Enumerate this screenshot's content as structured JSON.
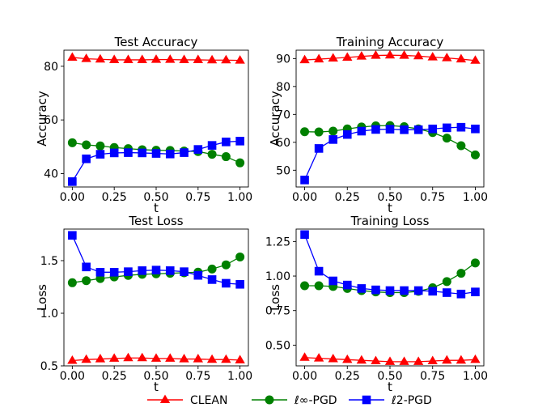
{
  "chart_data": [
    {
      "type": "line",
      "title": "Test Accuracy",
      "xlabel": "t",
      "ylabel": "Accuracy",
      "xlim": [
        -0.05,
        1.05
      ],
      "ylim": [
        35,
        86
      ],
      "xticks": [
        0.0,
        0.25,
        0.5,
        0.75,
        1.0
      ],
      "xtick_labels": [
        "0.00",
        "0.25",
        "0.50",
        "0.75",
        "1.00"
      ],
      "yticks": [
        40,
        60,
        80
      ],
      "ytick_labels": [
        "40",
        "60",
        "80"
      ],
      "x": [
        0.0,
        0.0833,
        0.1667,
        0.25,
        0.3333,
        0.4167,
        0.5,
        0.5833,
        0.6667,
        0.75,
        0.8333,
        0.9167,
        1.0
      ],
      "series": [
        {
          "name": "CLEAN",
          "values": [
            83.3,
            82.8,
            82.6,
            82.4,
            82.4,
            82.4,
            82.5,
            82.5,
            82.4,
            82.4,
            82.3,
            82.3,
            82.2
          ]
        },
        {
          "name": "ℓ∞-PGD",
          "values": [
            51.5,
            50.7,
            50.3,
            49.7,
            49.3,
            48.9,
            48.7,
            48.6,
            48.4,
            48.2,
            47.2,
            46.3,
            44.0
          ]
        },
        {
          "name": "ℓ2-PGD",
          "values": [
            37.0,
            45.5,
            47.2,
            47.7,
            47.8,
            47.7,
            47.5,
            47.3,
            47.8,
            49.0,
            50.5,
            51.8,
            52.1
          ]
        }
      ]
    },
    {
      "type": "line",
      "title": "Training Accuracy",
      "xlabel": "t",
      "ylabel": "Accuracy",
      "xlim": [
        -0.05,
        1.05
      ],
      "ylim": [
        44,
        93
      ],
      "xticks": [
        0.0,
        0.25,
        0.5,
        0.75,
        1.0
      ],
      "xtick_labels": [
        "0.00",
        "0.25",
        "0.50",
        "0.75",
        "1.00"
      ],
      "yticks": [
        50,
        60,
        70,
        80,
        90
      ],
      "ytick_labels": [
        "50",
        "60",
        "70",
        "80",
        "90"
      ],
      "x": [
        0.0,
        0.0833,
        0.1667,
        0.25,
        0.3333,
        0.4167,
        0.5,
        0.5833,
        0.6667,
        0.75,
        0.8333,
        0.9167,
        1.0
      ],
      "series": [
        {
          "name": "CLEAN",
          "values": [
            89.5,
            89.8,
            90.1,
            90.4,
            90.8,
            91.1,
            91.2,
            91.1,
            90.9,
            90.5,
            90.2,
            89.8,
            89.3
          ]
        },
        {
          "name": "ℓ∞-PGD",
          "values": [
            63.8,
            63.7,
            64.0,
            64.8,
            65.5,
            65.9,
            66.0,
            65.6,
            64.8,
            63.5,
            61.5,
            58.8,
            55.5
          ]
        },
        {
          "name": "ℓ2-PGD",
          "values": [
            46.5,
            57.8,
            61.0,
            62.8,
            64.0,
            64.6,
            64.7,
            64.5,
            64.5,
            64.8,
            65.2,
            65.4,
            64.8
          ]
        }
      ]
    },
    {
      "type": "line",
      "title": "Test Loss",
      "xlabel": "t",
      "ylabel": "Loss",
      "xlim": [
        -0.05,
        1.05
      ],
      "ylim": [
        0.5,
        1.8
      ],
      "xticks": [
        0.0,
        0.25,
        0.5,
        0.75,
        1.0
      ],
      "xtick_labels": [
        "0.00",
        "0.25",
        "0.50",
        "0.75",
        "1.00"
      ],
      "yticks": [
        0.5,
        1.0,
        1.5
      ],
      "ytick_labels": [
        "0.5",
        "1.0",
        "1.5"
      ],
      "x": [
        0.0,
        0.0833,
        0.1667,
        0.25,
        0.3333,
        0.4167,
        0.5,
        0.5833,
        0.6667,
        0.75,
        0.8333,
        0.9167,
        1.0
      ],
      "series": [
        {
          "name": "CLEAN",
          "values": [
            0.55,
            0.56,
            0.565,
            0.57,
            0.575,
            0.575,
            0.57,
            0.57,
            0.565,
            0.565,
            0.56,
            0.56,
            0.555
          ]
        },
        {
          "name": "ℓ∞-PGD",
          "values": [
            1.29,
            1.31,
            1.33,
            1.345,
            1.36,
            1.37,
            1.375,
            1.38,
            1.385,
            1.39,
            1.42,
            1.46,
            1.535
          ]
        },
        {
          "name": "ℓ2-PGD",
          "values": [
            1.74,
            1.44,
            1.39,
            1.39,
            1.395,
            1.405,
            1.41,
            1.405,
            1.395,
            1.36,
            1.32,
            1.285,
            1.275
          ]
        }
      ]
    },
    {
      "type": "line",
      "title": "Training Loss",
      "xlabel": "t",
      "ylabel": "Loss",
      "xlim": [
        -0.05,
        1.05
      ],
      "ylim": [
        0.35,
        1.34
      ],
      "xticks": [
        0.0,
        0.25,
        0.5,
        0.75,
        1.0
      ],
      "xtick_labels": [
        "0.00",
        "0.25",
        "0.50",
        "0.75",
        "1.00"
      ],
      "yticks": [
        0.5,
        0.75,
        1.0,
        1.25
      ],
      "ytick_labels": [
        "0.50",
        "0.75",
        "1.00",
        "1.25"
      ],
      "x": [
        0.0,
        0.0833,
        0.1667,
        0.25,
        0.3333,
        0.4167,
        0.5,
        0.5833,
        0.6667,
        0.75,
        0.8333,
        0.9167,
        1.0
      ],
      "series": [
        {
          "name": "CLEAN",
          "values": [
            0.41,
            0.405,
            0.4,
            0.395,
            0.39,
            0.385,
            0.38,
            0.38,
            0.38,
            0.385,
            0.39,
            0.39,
            0.395
          ]
        },
        {
          "name": "ℓ∞-PGD",
          "values": [
            0.93,
            0.93,
            0.925,
            0.91,
            0.895,
            0.885,
            0.88,
            0.88,
            0.89,
            0.915,
            0.96,
            1.02,
            1.095
          ]
        },
        {
          "name": "ℓ2-PGD",
          "values": [
            1.3,
            1.035,
            0.965,
            0.935,
            0.91,
            0.9,
            0.895,
            0.895,
            0.895,
            0.89,
            0.88,
            0.87,
            0.885
          ]
        }
      ]
    }
  ],
  "legend": {
    "placement": "bottom-center",
    "items": [
      {
        "name": "CLEAN",
        "color": "#ff0000",
        "marker": "triangle"
      },
      {
        "name": "ℓ∞-PGD",
        "color": "#008000",
        "marker": "circle"
      },
      {
        "name": "ℓ2-PGD",
        "color": "#0000ff",
        "marker": "square"
      }
    ]
  },
  "series_colors": {
    "CLEAN": "#ff0000",
    "ℓ∞-PGD": "#008000",
    "ℓ2-PGD": "#0000ff"
  }
}
